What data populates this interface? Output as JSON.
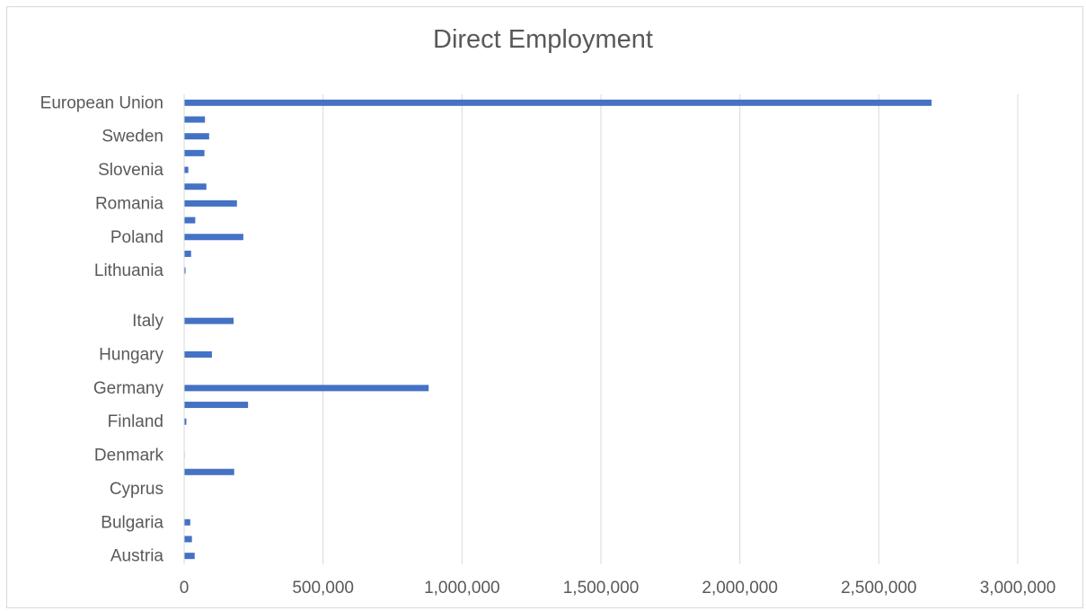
{
  "chart_data": {
    "type": "bar",
    "orientation": "horizontal",
    "title": "Direct Employment",
    "xlabel": "",
    "ylabel": "",
    "xlim": [
      0,
      3000000
    ],
    "x_ticks": [
      0,
      500000,
      1000000,
      1500000,
      2000000,
      2500000,
      3000000
    ],
    "x_tick_labels": [
      "0",
      "500,000",
      "1,000,000",
      "1,500,000",
      "2,000,000",
      "2,500,000",
      "3,000,000"
    ],
    "grid": "vertical",
    "bar_color": "#4472c4",
    "categories": [
      "European Union",
      "",
      "Sweden",
      "",
      "Slovenia",
      "",
      "Romania",
      "",
      "Poland",
      "",
      "Lithuania",
      "",
      "",
      "Italy",
      "",
      "Hungary",
      "",
      "Germany",
      "",
      "Finland",
      "",
      "Denmark",
      "",
      "Cyprus",
      "",
      "Bulgaria",
      "",
      "Austria"
    ],
    "values": [
      2690000,
      75000,
      90000,
      73000,
      15000,
      80000,
      190000,
      40000,
      213000,
      25000,
      5000,
      0,
      0,
      178000,
      0,
      100000,
      0,
      880000,
      230000,
      8000,
      0,
      2000,
      180000,
      0,
      0,
      22000,
      28000,
      38000
    ]
  }
}
